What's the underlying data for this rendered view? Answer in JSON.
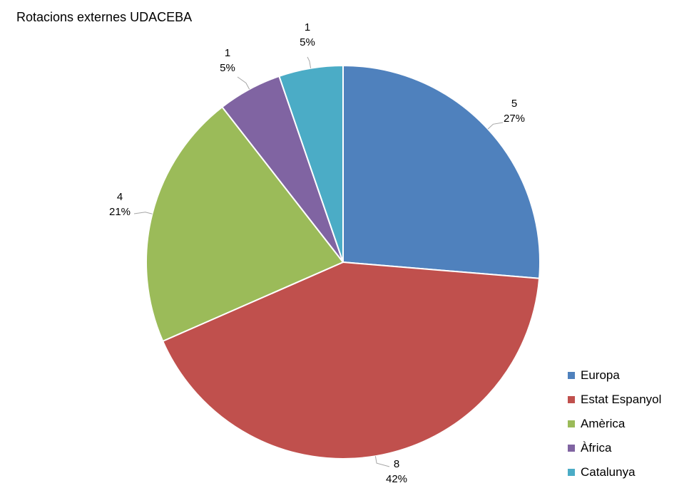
{
  "chart_data": {
    "type": "pie",
    "title": "Rotacions externes UDACEBA",
    "categories": [
      "Europa",
      "Estat Espanyol",
      "Amèrica",
      "Àfrica",
      "Catalunya"
    ],
    "values": [
      5,
      8,
      4,
      1,
      1
    ],
    "percent_labels": [
      "27%",
      "42%",
      "21%",
      "5%",
      "5%"
    ],
    "colors": [
      "#4F81BD",
      "#C0504D",
      "#9BBB59",
      "#8064A2",
      "#4BACC6"
    ],
    "start_angle_deg": 0,
    "direction": "clockwise",
    "legend_position": "bottom-right",
    "data_labels": "value and percentage, outside with leader lines"
  }
}
